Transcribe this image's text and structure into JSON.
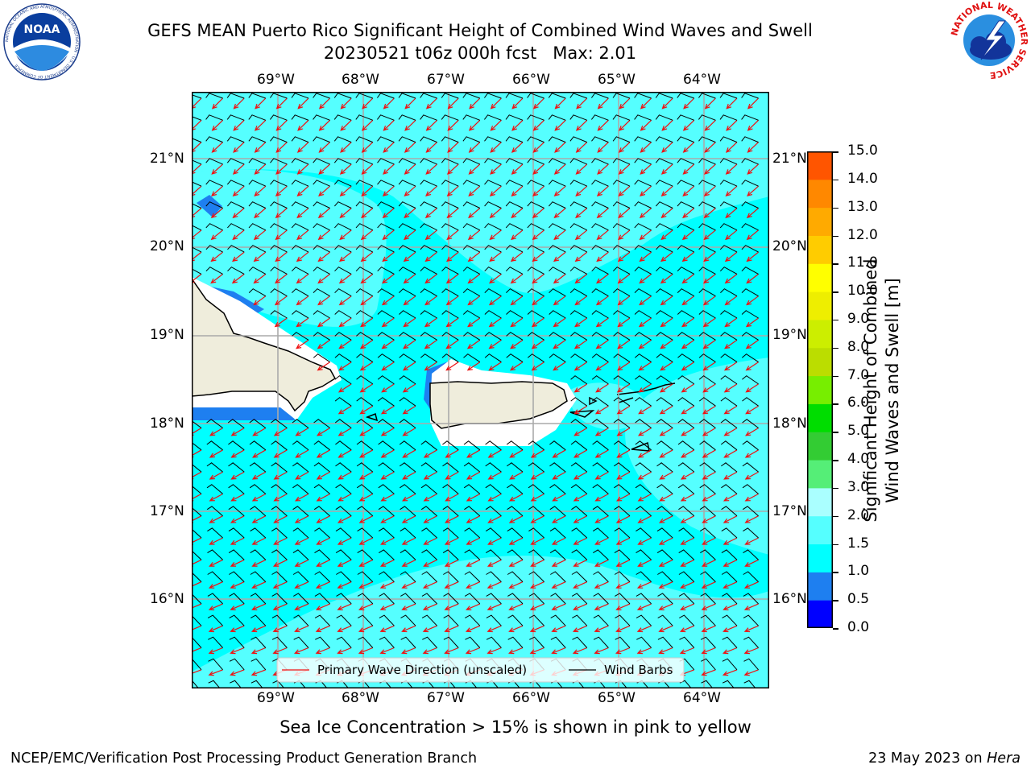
{
  "title": {
    "line1": "GEFS MEAN Puerto Rico Significant Height of Combined Wind Waves and Swell",
    "line2": "20230521 t06z 000h fcst   Max: 2.01"
  },
  "logos": {
    "noara_text": "NOAA",
    "noaa_ring": "NATIONAL OCEANIC AND ATMOSPHERIC ADMINISTRATION · U.S. DEPARTMENT OF COMMERCE",
    "nws_ring": "NATIONAL WEATHER SERVICE"
  },
  "map": {
    "lon_labels": [
      "69°W",
      "68°W",
      "67°W",
      "66°W",
      "65°W",
      "64°W"
    ],
    "lat_labels": [
      "21°N",
      "20°N",
      "19°N",
      "18°N",
      "17°N",
      "16°N"
    ],
    "legend": {
      "wave_dir": "Primary Wave Direction (unscaled)",
      "wind_barbs": "Wind Barbs"
    },
    "colors": {
      "ocean_main": "#00ffff",
      "ocean_light": "#55ffff",
      "ocean_dark": "#1e7ff0",
      "land": "#efeddc",
      "arrow": "#ee1111",
      "barb": "#000000"
    }
  },
  "colorbar": {
    "label_line1": "Significant Height of Combined",
    "label_line2": "Wind Waves and Swell [m]",
    "ticks": [
      "15.0",
      "14.0",
      "13.0",
      "12.0",
      "11.0",
      "10.0",
      "9.0",
      "8.0",
      "7.0",
      "6.0",
      "5.0",
      "4.0",
      "3.0",
      "2.0",
      "1.5",
      "1.0",
      "0.5",
      "0.0"
    ],
    "colors": [
      "#0000ff",
      "#1e7ff0",
      "#00ffff",
      "#55ffff",
      "#aaffff",
      "#55ee77",
      "#33cc33",
      "#00dd00",
      "#77ee00",
      "#bbdd00",
      "#ccee00",
      "#eeee00",
      "#ffff00",
      "#ffcc00",
      "#ffaa00",
      "#ff8800",
      "#ff5500",
      "#ff2200",
      "#ff0000"
    ]
  },
  "footer": {
    "sea_ice": "Sea Ice Concentration > 15% is shown in pink to yellow",
    "branch": "NCEP/EMC/Verification Post Processing Product Generation Branch",
    "date": "23 May 2023 on ",
    "host": "Hera"
  }
}
